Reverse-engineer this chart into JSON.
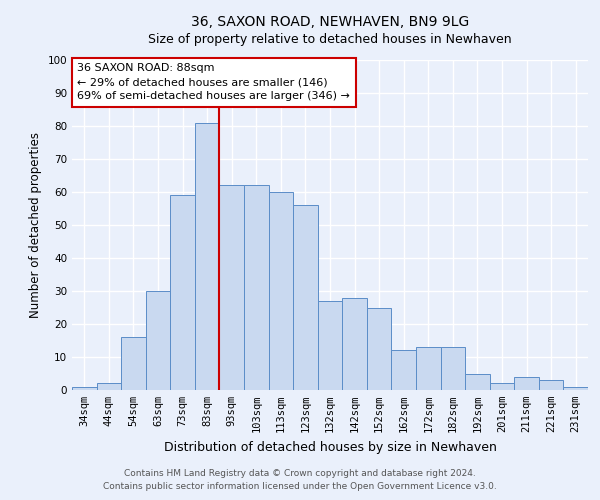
{
  "title": "36, SAXON ROAD, NEWHAVEN, BN9 9LG",
  "subtitle": "Size of property relative to detached houses in Newhaven",
  "xlabel": "Distribution of detached houses by size in Newhaven",
  "ylabel": "Number of detached properties",
  "bar_labels": [
    "34sqm",
    "44sqm",
    "54sqm",
    "63sqm",
    "73sqm",
    "83sqm",
    "93sqm",
    "103sqm",
    "113sqm",
    "123sqm",
    "132sqm",
    "142sqm",
    "152sqm",
    "162sqm",
    "172sqm",
    "182sqm",
    "192sqm",
    "201sqm",
    "211sqm",
    "221sqm",
    "231sqm"
  ],
  "bar_values": [
    1,
    2,
    16,
    30,
    59,
    81,
    62,
    62,
    60,
    56,
    27,
    28,
    25,
    12,
    13,
    13,
    5,
    2,
    4,
    3,
    1
  ],
  "bar_color": "#c9d9f0",
  "bar_edge_color": "#5b8dc8",
  "background_color": "#eaf0fb",
  "grid_color": "#ffffff",
  "vline_x": 5.5,
  "vline_color": "#cc0000",
  "annotation_line1": "36 SAXON ROAD: 88sqm",
  "annotation_line2": "← 29% of detached houses are smaller (146)",
  "annotation_line3": "69% of semi-detached houses are larger (346) →",
  "annotation_box_edge_color": "#cc0000",
  "ylim": [
    0,
    100
  ],
  "yticks": [
    0,
    10,
    20,
    30,
    40,
    50,
    60,
    70,
    80,
    90,
    100
  ],
  "footer_line1": "Contains HM Land Registry data © Crown copyright and database right 2024.",
  "footer_line2": "Contains public sector information licensed under the Open Government Licence v3.0.",
  "title_fontsize": 10,
  "subtitle_fontsize": 9,
  "xlabel_fontsize": 9,
  "ylabel_fontsize": 8.5,
  "tick_fontsize": 7.5,
  "annotation_fontsize": 8,
  "footer_fontsize": 6.5
}
